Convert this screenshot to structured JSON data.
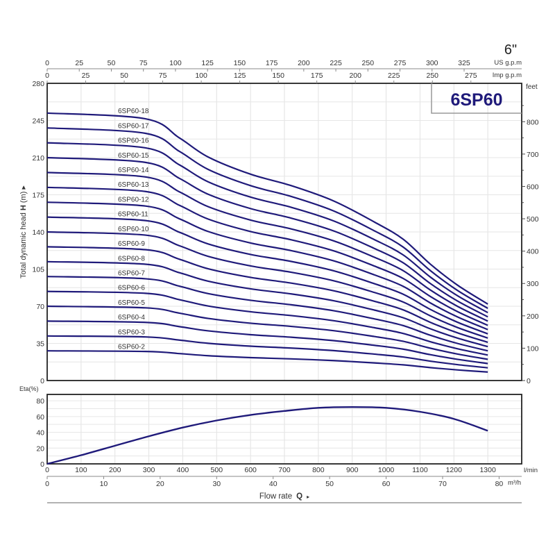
{
  "chart_data": [
    {
      "type": "line",
      "title": "6SP60",
      "size_label": "6\"",
      "ylabel_prefix": "Total dynamic head ",
      "ylabel_bold": "H",
      "ylabel_suffix": " (m)",
      "y2label": "feet",
      "xlim": [
        0,
        1400
      ],
      "ylim": [
        0,
        280
      ],
      "y_ticks": [
        0,
        35,
        70,
        105,
        140,
        175,
        210,
        245,
        280
      ],
      "y2_ticks": [
        0,
        100,
        200,
        300,
        400,
        500,
        600,
        700,
        800
      ],
      "top_axes": [
        {
          "unit": "US g.p.m",
          "ticks": [
            0,
            25,
            50,
            75,
            100,
            125,
            150,
            175,
            200,
            225,
            250,
            275,
            300,
            325
          ],
          "lmin_per_unit": 3.785
        },
        {
          "unit": "Imp g.p.m",
          "ticks": [
            0,
            25,
            50,
            75,
            100,
            125,
            150,
            175,
            200,
            225,
            250,
            275
          ],
          "lmin_per_unit": 4.546
        }
      ],
      "grid": true,
      "x": [
        0,
        290,
        390,
        475,
        600,
        720,
        845,
        965,
        1050,
        1130,
        1210,
        1300
      ],
      "series": [
        {
          "name": "6SP60-2",
          "values": [
            28,
            27.4,
            25.4,
            23.4,
            21.6,
            20.4,
            18.8,
            16.6,
            14.8,
            12.2,
            10,
            8
          ]
        },
        {
          "name": "6SP60-3",
          "values": [
            42,
            41.1,
            38.1,
            35.1,
            32.4,
            30.6,
            28.2,
            24.9,
            22.2,
            18.3,
            15,
            12
          ]
        },
        {
          "name": "6SP60-4",
          "values": [
            56,
            54.8,
            50.8,
            46.8,
            43.2,
            40.8,
            37.6,
            33.2,
            29.6,
            24.4,
            20,
            16
          ]
        },
        {
          "name": "6SP60-5",
          "values": [
            70,
            68.5,
            63.5,
            58.5,
            54,
            51,
            47,
            41.5,
            37,
            30.5,
            25,
            20
          ]
        },
        {
          "name": "6SP60-6",
          "values": [
            84,
            82.2,
            76.2,
            70.2,
            64.8,
            61.2,
            56.4,
            49.8,
            44.4,
            36.6,
            30,
            24
          ]
        },
        {
          "name": "6SP60-7",
          "values": [
            98,
            95.9,
            88.9,
            81.9,
            75.6,
            71.4,
            65.8,
            58.1,
            51.8,
            42.7,
            35,
            28
          ]
        },
        {
          "name": "6SP60-8",
          "values": [
            112,
            109.6,
            101.6,
            93.6,
            86.4,
            81.6,
            75.2,
            66.4,
            59.2,
            48.8,
            40,
            32
          ]
        },
        {
          "name": "6SP60-9",
          "values": [
            126,
            123.3,
            114.3,
            105.3,
            97.2,
            91.8,
            84.6,
            74.7,
            66.6,
            54.9,
            45,
            36
          ]
        },
        {
          "name": "6SP60-10",
          "values": [
            140,
            137,
            127,
            117,
            108,
            102,
            94,
            83,
            74,
            61,
            50,
            40
          ]
        },
        {
          "name": "6SP60-11",
          "values": [
            154,
            150.7,
            139.7,
            128.7,
            118.8,
            112.2,
            103.4,
            91.3,
            81.4,
            67.1,
            55,
            44
          ]
        },
        {
          "name": "6SP60-12",
          "values": [
            168,
            164.4,
            152.4,
            140.4,
            129.6,
            122.4,
            112.8,
            99.6,
            88.8,
            73.2,
            60,
            48
          ]
        },
        {
          "name": "6SP60-13",
          "values": [
            182,
            178.1,
            165.1,
            152.1,
            140.4,
            132.6,
            122.2,
            107.9,
            96.2,
            79.3,
            65,
            52
          ]
        },
        {
          "name": "6SP60-14",
          "values": [
            196,
            191.8,
            177.8,
            163.8,
            151.2,
            142.8,
            131.6,
            116.2,
            103.6,
            85.4,
            70,
            56
          ]
        },
        {
          "name": "6SP60-15",
          "values": [
            210,
            205.5,
            190.5,
            175.5,
            162,
            153,
            141,
            124.5,
            111,
            91.5,
            75,
            60
          ]
        },
        {
          "name": "6SP60-16",
          "values": [
            224,
            219.2,
            203.2,
            187.2,
            172.8,
            163.2,
            150.4,
            132.8,
            118.4,
            97.6,
            80,
            64
          ]
        },
        {
          "name": "6SP60-17",
          "values": [
            238,
            232.9,
            215.9,
            198.9,
            183.6,
            173.4,
            159.8,
            141.1,
            125.8,
            103.7,
            85,
            68
          ]
        },
        {
          "name": "6SP60-18",
          "values": [
            252,
            246.6,
            228.6,
            210.6,
            194.4,
            183.6,
            169.2,
            149.4,
            133.2,
            109.8,
            90,
            72
          ]
        }
      ],
      "line_color": "#1f1a7a",
      "title_color": "#1f1a7a"
    },
    {
      "type": "line",
      "ylabel": "Eta(%)",
      "xlim": [
        0,
        1400
      ],
      "ylim": [
        0,
        88
      ],
      "y_ticks": [
        0,
        20,
        40,
        60,
        80
      ],
      "x_ticks": [
        0,
        100,
        200,
        300,
        400,
        500,
        600,
        700,
        800,
        900,
        1000,
        1100,
        1200,
        1300
      ],
      "x_unit": "l/min",
      "x2_unit": "m³/h",
      "x2_ticks": [
        0,
        10,
        20,
        30,
        40,
        50,
        60,
        70,
        80
      ],
      "xlabel": "Flow rate",
      "xlabel_symbol": "Q",
      "grid": true,
      "x": [
        0,
        100,
        200,
        300,
        400,
        500,
        600,
        700,
        800,
        900,
        1000,
        1100,
        1200,
        1300
      ],
      "values": [
        0,
        11,
        23,
        35,
        46,
        55,
        62,
        67,
        71,
        72,
        71,
        66,
        57,
        42
      ],
      "line_color": "#1f1a7a"
    }
  ]
}
